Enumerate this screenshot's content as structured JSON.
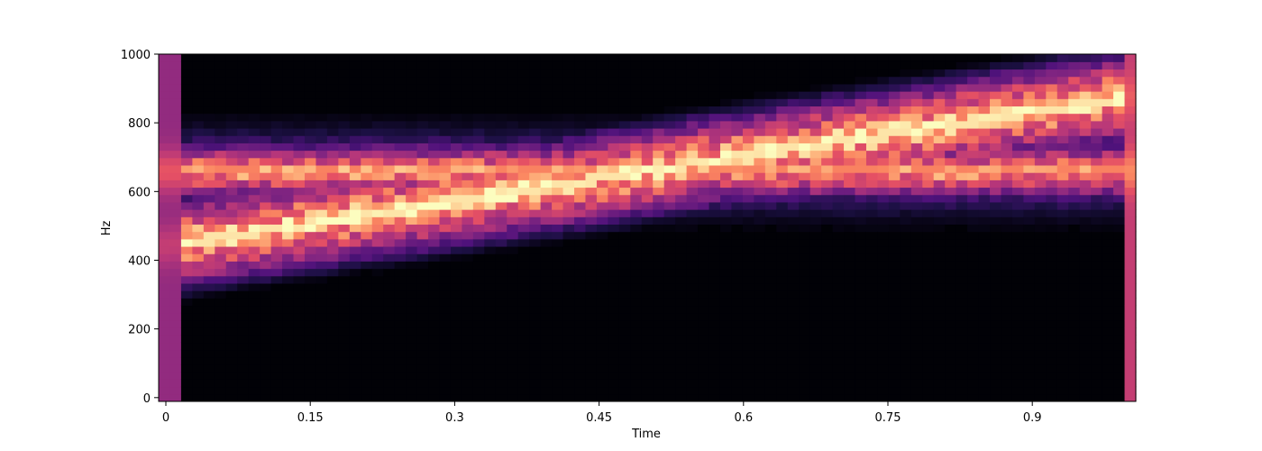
{
  "chart_data": {
    "type": "heatmap",
    "title": "",
    "xlabel": "Time",
    "ylabel": "Hz",
    "xlim": [
      -0.0075,
      1.0075
    ],
    "ylim": [
      -11,
      1000
    ],
    "x_ticks": [
      0,
      0.15,
      0.3,
      0.45,
      0.6,
      0.75,
      0.9
    ],
    "x_tick_labels": [
      "0",
      "0.15",
      "0.3",
      "0.45",
      "0.6",
      "0.75",
      "0.9"
    ],
    "y_ticks": [
      0,
      200,
      400,
      600,
      800,
      1000
    ],
    "y_tick_labels": [
      "0",
      "200",
      "400",
      "600",
      "800",
      "1000"
    ],
    "colormap": "magma",
    "grid": false,
    "frames": 87,
    "frequency_bins": 47,
    "freq_step_hz": 21.5,
    "components": [
      {
        "kind": "constant_tone",
        "freq_hz": 660,
        "t_start": 0.0,
        "t_end": 1.0
      },
      {
        "kind": "linear_chirp",
        "freq_start_hz": 440,
        "freq_end_hz": 880,
        "t_start": 0.0,
        "t_end": 1.0
      }
    ]
  }
}
